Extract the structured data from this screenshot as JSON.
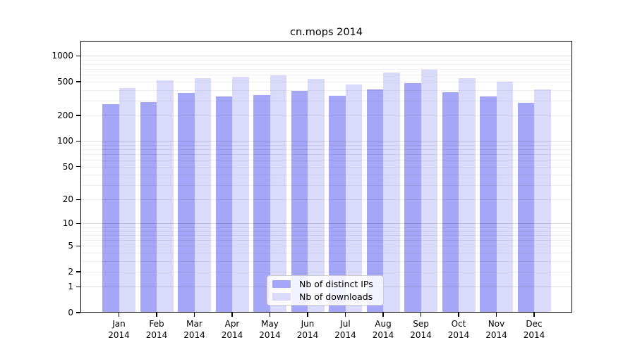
{
  "title": "cn.mops 2014",
  "chart_data": {
    "type": "bar",
    "title": "cn.mops 2014",
    "yscale": "log1p",
    "ylim": [
      0,
      1450
    ],
    "grid": true,
    "legend_position": "bottom-center",
    "categories": [
      "Jan 2014",
      "Feb 2014",
      "Mar 2014",
      "Apr 2014",
      "May 2014",
      "Jun 2014",
      "Jul 2014",
      "Aug 2014",
      "Sep 2014",
      "Oct 2014",
      "Nov 2014",
      "Dec 2014"
    ],
    "x_tick_line1": [
      "Jan",
      "Feb",
      "Mar",
      "Apr",
      "May",
      "Jun",
      "Jul",
      "Aug",
      "Sep",
      "Oct",
      "Nov",
      "Dec"
    ],
    "x_tick_line2": "2014",
    "yticks": [
      0,
      1,
      2,
      5,
      10,
      20,
      50,
      100,
      200,
      500,
      1000
    ],
    "ytick_labels": [
      "0",
      "1",
      "2",
      "5",
      "10",
      "20",
      "50",
      "100",
      "200",
      "500",
      "1000"
    ],
    "series": [
      {
        "name": "Nb of distinct IPs",
        "color": "#a6a6f8",
        "values": [
          273,
          289,
          366,
          337,
          348,
          393,
          340,
          403,
          485,
          375,
          335,
          285
        ]
      },
      {
        "name": "Nb of downloads",
        "color": "#dadafb",
        "values": [
          425,
          518,
          546,
          567,
          589,
          536,
          466,
          637,
          687,
          549,
          496,
          405
        ]
      }
    ]
  }
}
